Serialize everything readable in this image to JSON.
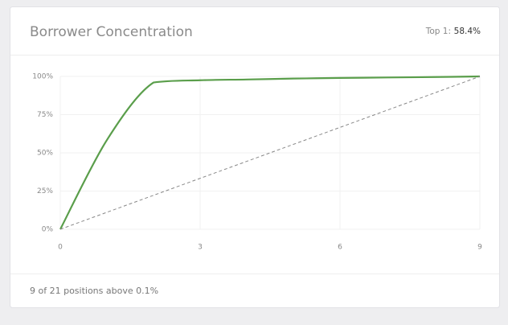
{
  "header": {
    "title": "Borrower Concentration",
    "stat_label": "Top 1:",
    "stat_value": "58.4%"
  },
  "footer": {
    "text": "9 of 21 positions above 0.1%"
  },
  "chart_data": {
    "type": "line",
    "x": [
      0,
      1,
      2,
      3,
      4,
      5,
      6,
      7,
      8,
      9
    ],
    "series": [
      {
        "color": "#5a9e4b",
        "values": [
          0,
          58.4,
          96,
          97.5,
          98,
          98.6,
          99,
          99.3,
          99.6,
          100
        ]
      },
      {
        "color": "#888888",
        "dashed": true,
        "x": [
          0,
          9
        ],
        "values": [
          0,
          100
        ]
      }
    ],
    "xlim": [
      0,
      9
    ],
    "xticks": [
      0,
      3,
      6,
      9
    ],
    "ylim": [
      0,
      100
    ],
    "yticks": [
      {
        "value": 0,
        "label": "0%"
      },
      {
        "value": 25,
        "label": "25%"
      },
      {
        "value": 50,
        "label": "50%"
      },
      {
        "value": 75,
        "label": "75%"
      },
      {
        "value": 100,
        "label": "100%"
      }
    ],
    "grid": true
  }
}
